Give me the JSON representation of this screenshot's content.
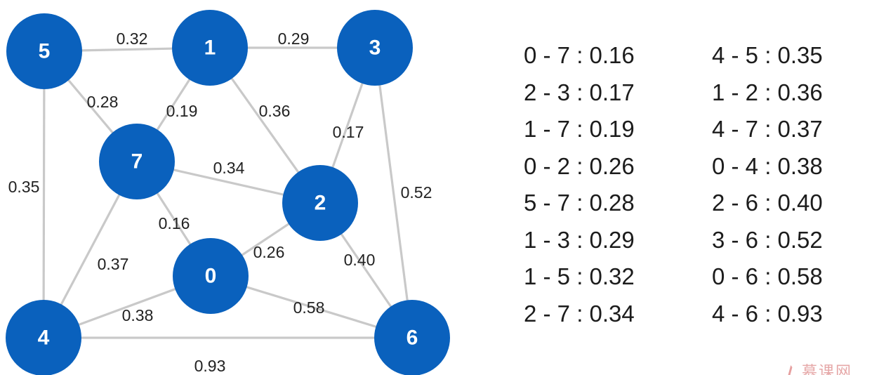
{
  "graph": {
    "nodes": [
      {
        "id": "5",
        "label": "5"
      },
      {
        "id": "1",
        "label": "1"
      },
      {
        "id": "3",
        "label": "3"
      },
      {
        "id": "7",
        "label": "7"
      },
      {
        "id": "2",
        "label": "2"
      },
      {
        "id": "0",
        "label": "0"
      },
      {
        "id": "4",
        "label": "4"
      },
      {
        "id": "6",
        "label": "6"
      }
    ],
    "edges": [
      {
        "from": "5",
        "to": "1",
        "weight": "0.32"
      },
      {
        "from": "1",
        "to": "3",
        "weight": "0.29"
      },
      {
        "from": "5",
        "to": "7",
        "weight": "0.28"
      },
      {
        "from": "1",
        "to": "7",
        "weight": "0.19"
      },
      {
        "from": "1",
        "to": "2",
        "weight": "0.36"
      },
      {
        "from": "3",
        "to": "2",
        "weight": "0.17"
      },
      {
        "from": "5",
        "to": "4",
        "weight": "0.35"
      },
      {
        "from": "7",
        "to": "2",
        "weight": "0.34"
      },
      {
        "from": "3",
        "to": "6",
        "weight": "0.52"
      },
      {
        "from": "7",
        "to": "0",
        "weight": "0.16"
      },
      {
        "from": "7",
        "to": "4",
        "weight": "0.37"
      },
      {
        "from": "0",
        "to": "2",
        "weight": "0.26"
      },
      {
        "from": "2",
        "to": "6",
        "weight": "0.40"
      },
      {
        "from": "0",
        "to": "4",
        "weight": "0.38"
      },
      {
        "from": "0",
        "to": "6",
        "weight": "0.58"
      },
      {
        "from": "4",
        "to": "6",
        "weight": "0.93"
      }
    ]
  },
  "sorted_edges": {
    "left": [
      "0 - 7 : 0.16",
      "2 - 3 : 0.17",
      "1 - 7 : 0.19",
      "0 - 2 : 0.26",
      "5 - 7 : 0.28",
      "1 - 3 : 0.29",
      "1 - 5 : 0.32",
      "2 - 7 : 0.34"
    ],
    "right": [
      "4 - 5 : 0.35",
      "1 - 2 : 0.36",
      "4 - 7 : 0.37",
      "0 - 4 : 0.38",
      "2 - 6 : 0.40",
      "3 - 6 : 0.52",
      "0 - 6 : 0.58",
      "4 - 6 : 0.93"
    ]
  },
  "colors": {
    "node_fill": "#0a61bd",
    "node_text": "#ffffff",
    "edge_stroke": "#c9c9c9",
    "text": "#1c1c1c"
  }
}
